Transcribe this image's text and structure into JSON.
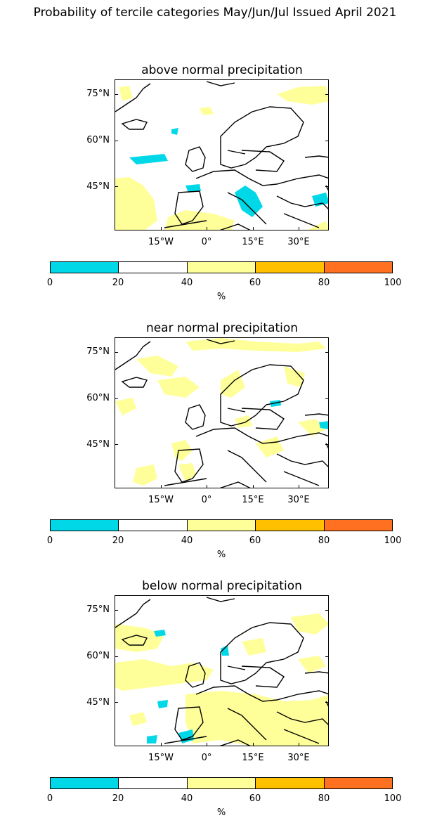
{
  "title": "Probability of tercile categories May/Jun/Jul Issued April 2021",
  "colors": {
    "band_0_20": "#00d8e8",
    "band_20_40": "#ffffff",
    "band_40_60": "#ffff99",
    "band_60_80": "#ffc000",
    "band_80_100": "#ff7020",
    "coastline": "#000000"
  },
  "map_axes": {
    "lat_labels": [
      "75°N",
      "60°N",
      "45°N"
    ],
    "lon_labels": [
      "15°W",
      "0°",
      "15°E",
      "30°E"
    ]
  },
  "colorbar": {
    "tick_labels": [
      "0",
      "20",
      "40",
      "60",
      "80",
      "100"
    ],
    "unit": "%"
  },
  "panels": [
    {
      "title": "above normal precipitation"
    },
    {
      "title": "near normal precipitation"
    },
    {
      "title": "below normal precipitation"
    }
  ]
}
